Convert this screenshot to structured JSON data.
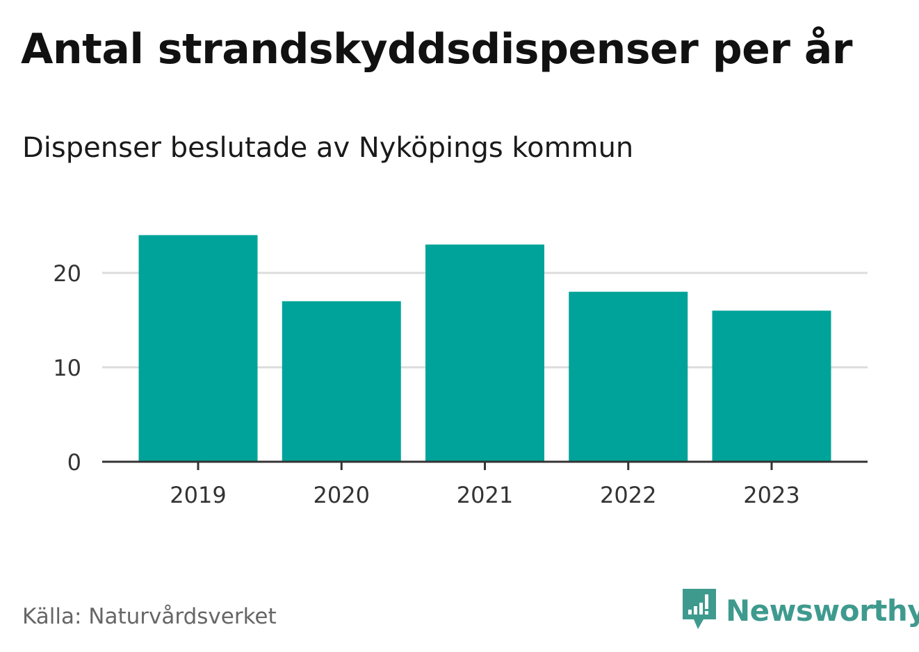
{
  "chart_data": {
    "type": "bar",
    "title": "Antal strandskyddsdispenser per år",
    "subtitle": "Dispenser beslutade av Nyköpings kommun",
    "categories": [
      "2019",
      "2020",
      "2021",
      "2022",
      "2023"
    ],
    "values": [
      24,
      17,
      23,
      18,
      16
    ],
    "yticks": [
      "0",
      "10",
      "20"
    ],
    "ylim": [
      0,
      24
    ],
    "xlabel": "",
    "ylabel": "",
    "grid": true,
    "bar_color": "#00a399"
  },
  "footer": {
    "source": "Källa: Naturvårdsverket",
    "brand": "Newsworthy",
    "brand_color": "#3f9a8e",
    "logo_icon": "newsworthy-logo-icon"
  }
}
